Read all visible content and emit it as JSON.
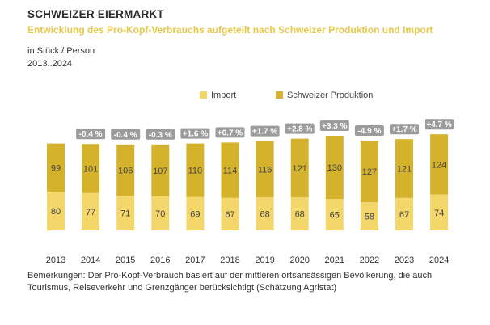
{
  "header": {
    "title": "SCHWEIZER EIERMARKT",
    "subtitle": "Entwicklung des Pro-Kopf-Verbrauchs aufgeteilt nach Schweizer Produktion und Import",
    "unit": "in Stück / Person",
    "range": "2013..2024"
  },
  "colors": {
    "import": "#f3d76b",
    "swiss": "#d4b22c",
    "badge": "#9c9c9c",
    "label": "#444444"
  },
  "chart_data": {
    "type": "bar",
    "stacked": true,
    "categories": [
      "2013",
      "2014",
      "2015",
      "2016",
      "2017",
      "2018",
      "2019",
      "2020",
      "2021",
      "2022",
      "2023",
      "2024"
    ],
    "series": [
      {
        "name": "Import",
        "values": [
          80,
          77,
          71,
          70,
          69,
          67,
          68,
          68,
          65,
          58,
          67,
          74
        ]
      },
      {
        "name": "Schweizer Produktion",
        "values": [
          99,
          101,
          106,
          107,
          110,
          114,
          116,
          121,
          130,
          127,
          121,
          124
        ]
      }
    ],
    "changes": [
      "",
      "-0.4 %",
      "-0.4 %",
      "-0.3 %",
      "+1.6 %",
      "+0.7 %",
      "+1.7 %",
      "+2.8 %",
      "+3.3 %",
      "-4.9 %",
      "+1.7 %",
      "+4.7 %"
    ],
    "legend_position": "top-center",
    "ylim": [
      0,
      200
    ]
  },
  "footnote": "Bemerkungen: Der Pro-Kopf-Verbrauch basiert auf der mittleren ortsansässigen Bevölkerung, die auch Tourismus, Reiseverkehr und Grenzgänger berücksichtigt (Schätzung Agristat)"
}
